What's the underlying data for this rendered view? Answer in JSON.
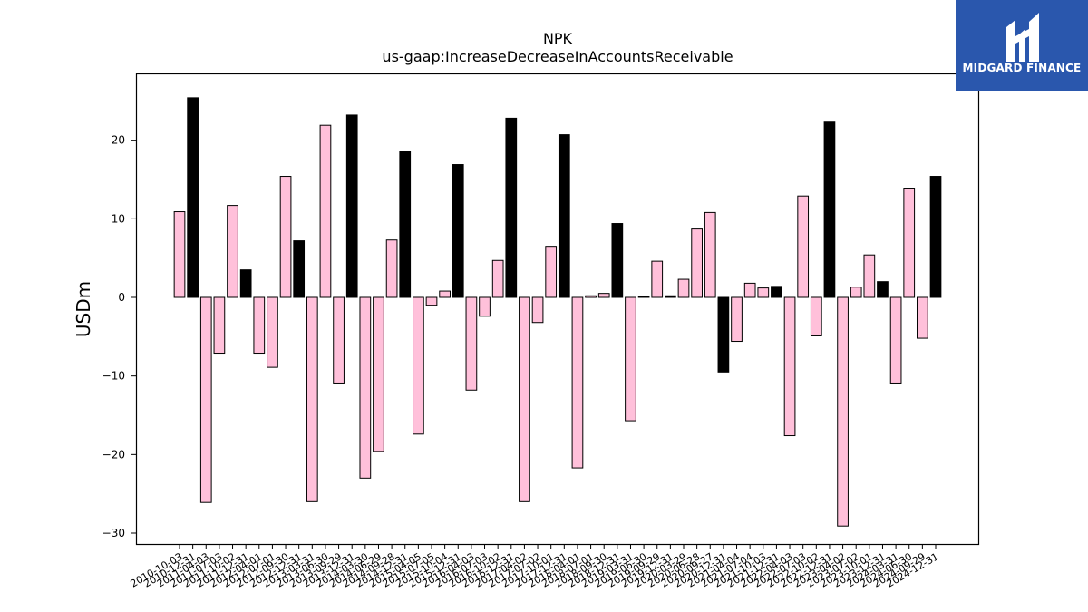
{
  "brand": {
    "name": "MIDGARD FINANCE",
    "bg_color": "#2a57ad"
  },
  "chart_data": {
    "type": "bar",
    "title": "NPK",
    "subtitle": "us-gaap:IncreaseDecreaseInAccountsReceivable",
    "xlabel": "",
    "ylabel": "USDm",
    "ylim": [
      -31.5,
      28.5
    ],
    "yticks": [
      -30,
      -20,
      -10,
      0,
      10,
      20
    ],
    "colors": {
      "quarter": "#ffc0da",
      "annual": "#000000",
      "edge": "#000000"
    },
    "categories": [
      "2010-10-03",
      "2010-12-31",
      "2011-04-03",
      "2011-07-03",
      "2011-10-02",
      "2011-12-31",
      "2012-04-01",
      "2012-07-01",
      "2012-09-30",
      "2012-12-31",
      "2013-03-31",
      "2013-06-30",
      "2013-09-29",
      "2013-12-31",
      "2014-03-30",
      "2014-06-29",
      "2014-09-28",
      "2014-12-31",
      "2015-04-05",
      "2015-07-05",
      "2015-10-04",
      "2015-12-31",
      "2016-04-03",
      "2016-07-03",
      "2016-10-02",
      "2016-12-31",
      "2017-04-02",
      "2017-07-02",
      "2017-10-01",
      "2017-12-31",
      "2018-04-01",
      "2018-07-01",
      "2018-09-30",
      "2018-12-31",
      "2019-03-31",
      "2019-06-30",
      "2019-09-29",
      "2019-12-31",
      "2020-03-29",
      "2020-06-28",
      "2020-09-27",
      "2020-12-31",
      "2021-04-04",
      "2021-07-04",
      "2021-10-03",
      "2021-12-31",
      "2022-04-03",
      "2022-07-03",
      "2022-10-02",
      "2022-12-31",
      "2023-04-02",
      "2023-07-02",
      "2023-10-01",
      "2023-12-31",
      "2024-03-31",
      "2024-06-30",
      "2024-09-29",
      "2024-12-31"
    ],
    "values": [
      10.9,
      25.4,
      -26.1,
      -7.1,
      11.7,
      3.5,
      -7.1,
      -8.9,
      15.4,
      7.2,
      -26.0,
      21.9,
      -10.9,
      23.2,
      -23.0,
      -19.6,
      7.3,
      18.6,
      -17.4,
      -1.0,
      0.8,
      16.9,
      -11.8,
      -2.4,
      4.7,
      22.8,
      -26.0,
      -3.2,
      6.5,
      20.7,
      -21.7,
      0.2,
      0.5,
      9.4,
      -15.7,
      0.1,
      4.6,
      0.2,
      2.3,
      8.7,
      10.8,
      -9.5,
      -5.6,
      1.8,
      1.2,
      1.4,
      -17.6,
      12.9,
      -4.9,
      22.3,
      -29.1,
      1.3,
      5.4,
      2.0,
      -10.9,
      13.9,
      -5.2,
      15.4
    ],
    "period": [
      "Q",
      "FY",
      "Q",
      "Q",
      "Q",
      "FY",
      "Q",
      "Q",
      "Q",
      "FY",
      "Q",
      "Q",
      "Q",
      "FY",
      "Q",
      "Q",
      "Q",
      "FY",
      "Q",
      "Q",
      "Q",
      "FY",
      "Q",
      "Q",
      "Q",
      "FY",
      "Q",
      "Q",
      "Q",
      "FY",
      "Q",
      "Q",
      "Q",
      "FY",
      "Q",
      "Q",
      "Q",
      "FY",
      "Q",
      "Q",
      "Q",
      "FY",
      "Q",
      "Q",
      "Q",
      "FY",
      "Q",
      "Q",
      "Q",
      "FY",
      "Q",
      "Q",
      "Q",
      "FY",
      "Q",
      "Q",
      "Q",
      "FY"
    ],
    "grid": false,
    "legend": "none"
  }
}
